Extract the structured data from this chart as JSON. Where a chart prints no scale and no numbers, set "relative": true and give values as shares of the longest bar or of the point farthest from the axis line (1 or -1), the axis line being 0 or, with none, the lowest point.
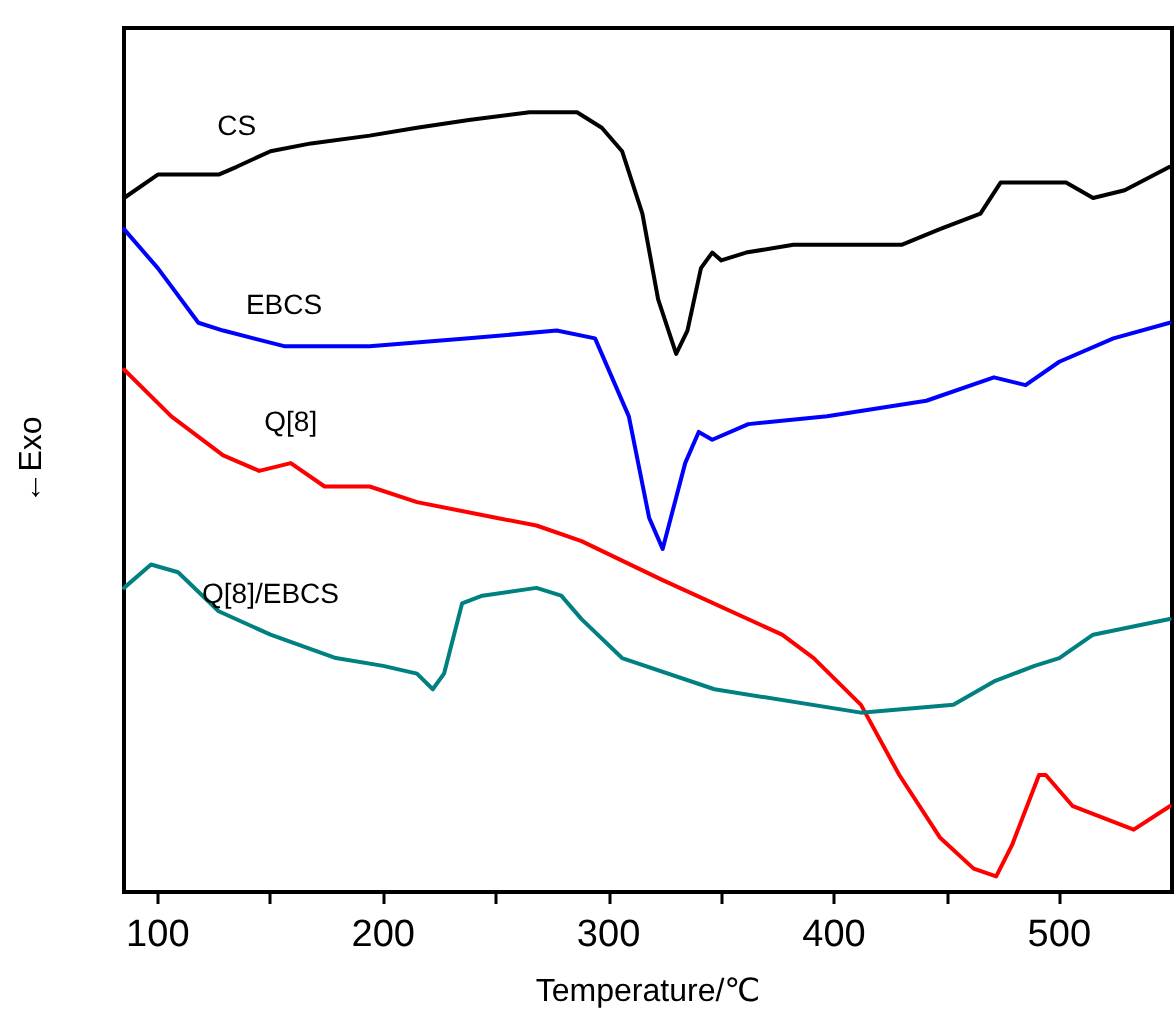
{
  "chart_data": {
    "type": "line",
    "relative": true,
    "xlabel": "Temperature/℃",
    "ylabel": "←Exo",
    "xlim": [
      85,
      550
    ],
    "xticks": [
      100,
      {
        "value": 150,
        "label": null
      },
      200,
      {
        "value": 250,
        "label": null
      },
      300,
      {
        "value": 350,
        "label": null
      },
      400,
      {
        "value": 450,
        "label": null
      },
      500
    ],
    "grid": false,
    "legend": false,
    "marker": "none",
    "line_style": "solid",
    "series": [
      {
        "name": "CS",
        "color": "#000000",
        "x": [
          85,
          100,
          112,
          127,
          135,
          150,
          168,
          194,
          215,
          238,
          265,
          286,
          297,
          306,
          315,
          322,
          330,
          335,
          341,
          346,
          350,
          361,
          382,
          412,
          430,
          447,
          465,
          474,
          494,
          503,
          515,
          529,
          549
        ],
        "values": [
          0.89,
          0.92,
          0.92,
          0.92,
          0.93,
          0.95,
          0.96,
          0.97,
          0.98,
          0.99,
          1.0,
          1.0,
          0.98,
          0.95,
          0.87,
          0.76,
          0.69,
          0.72,
          0.8,
          0.82,
          0.81,
          0.82,
          0.83,
          0.83,
          0.83,
          0.85,
          0.87,
          0.91,
          0.91,
          0.91,
          0.89,
          0.9,
          0.93
        ]
      },
      {
        "name": "EBCS",
        "color": "#0000ff",
        "x": [
          85,
          100,
          118,
          129,
          156,
          194,
          238,
          277,
          294,
          309,
          318,
          324,
          334,
          340,
          346,
          362,
          397,
          441,
          471,
          485,
          500,
          524,
          549
        ],
        "values": [
          0.85,
          0.8,
          0.73,
          0.72,
          0.7,
          0.7,
          0.71,
          0.72,
          0.71,
          0.61,
          0.48,
          0.44,
          0.55,
          0.59,
          0.58,
          0.6,
          0.61,
          0.63,
          0.66,
          0.65,
          0.68,
          0.71,
          0.73
        ]
      },
      {
        "name": "Q[8]",
        "color": "#ff0000",
        "x": [
          85,
          106,
          129,
          145,
          159,
          174,
          194,
          215,
          250,
          268,
          288,
          324,
          377,
          391,
          412,
          429,
          447,
          462,
          472,
          479,
          491,
          494,
          506,
          533,
          549
        ],
        "values": [
          0.67,
          0.61,
          0.56,
          0.54,
          0.55,
          0.52,
          0.52,
          0.5,
          0.48,
          0.47,
          0.45,
          0.4,
          0.33,
          0.3,
          0.24,
          0.15,
          0.07,
          0.03,
          0.02,
          0.06,
          0.15,
          0.15,
          0.11,
          0.08,
          0.11
        ]
      },
      {
        "name": "Q[8]/EBCS",
        "color": "#008080",
        "x": [
          85,
          97,
          109,
          127,
          150,
          179,
          200,
          215,
          222,
          227,
          235,
          244,
          268,
          279,
          288,
          306,
          347,
          412,
          453,
          471,
          489,
          500,
          515,
          549
        ],
        "values": [
          0.39,
          0.42,
          0.41,
          0.36,
          0.33,
          0.3,
          0.29,
          0.28,
          0.26,
          0.28,
          0.37,
          0.38,
          0.39,
          0.38,
          0.35,
          0.3,
          0.26,
          0.23,
          0.24,
          0.27,
          0.29,
          0.3,
          0.33,
          0.35
        ]
      }
    ]
  }
}
